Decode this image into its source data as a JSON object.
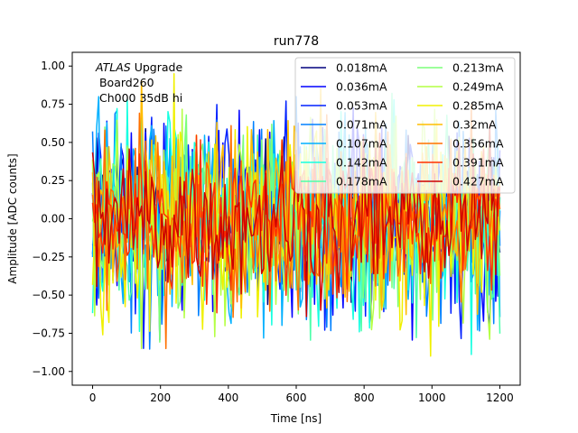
{
  "chart_data": {
    "type": "line",
    "title": "run778",
    "xlabel": "Time [ns]",
    "ylabel": "Amplitude [ADC counts]",
    "xlim": [
      -60,
      1260
    ],
    "ylim": [
      -1.09,
      1.09
    ],
    "xticks": [
      0,
      200,
      400,
      600,
      800,
      1000,
      1200
    ],
    "xtick_labels": [
      "0",
      "200",
      "400",
      "600",
      "800",
      "1000",
      "1200"
    ],
    "yticks": [
      1.0,
      0.75,
      0.5,
      0.25,
      0.0,
      -0.25,
      -0.5,
      -0.75,
      -1.0
    ],
    "ytick_labels": [
      "1.00",
      "0.75",
      "0.50",
      "0.25",
      "0.00",
      "−0.25",
      "−0.50",
      "−0.75",
      "−1.00"
    ],
    "grid": false,
    "legend_location": "top-right",
    "legend_columns": 2,
    "x_start": 0,
    "x_end": 1200,
    "x_step": 6,
    "annotation": {
      "italic": "ATLAS",
      "line1_rest": " Upgrade",
      "line2": " Board260",
      "line3": " Ch000 35dB hi"
    },
    "series": [
      {
        "name": "0.018mA",
        "color": "#00007f",
        "amp": 0.5,
        "max": 0.62,
        "min": -0.62
      },
      {
        "name": "0.036mA",
        "color": "#0000ff",
        "amp": 0.6,
        "max": 0.86,
        "min": -1.0
      },
      {
        "name": "0.053mA",
        "color": "#0020ff",
        "amp": 0.6,
        "max": 0.85,
        "min": -0.92
      },
      {
        "name": "0.071mA",
        "color": "#0080ff",
        "amp": 0.6,
        "max": 0.8,
        "min": -0.9
      },
      {
        "name": "0.107mA",
        "color": "#00b0ff",
        "amp": 0.6,
        "max": 0.8,
        "min": -0.96
      },
      {
        "name": "0.142mA",
        "color": "#17ffe0",
        "amp": 0.6,
        "max": 0.78,
        "min": -0.9
      },
      {
        "name": "0.178mA",
        "color": "#4dffaa",
        "amp": 0.6,
        "max": 0.95,
        "min": -0.9
      },
      {
        "name": "0.213mA",
        "color": "#7cff79",
        "amp": 0.6,
        "max": 0.92,
        "min": -0.97
      },
      {
        "name": "0.249mA",
        "color": "#b4ff43",
        "amp": 0.6,
        "max": 0.95,
        "min": -0.85
      },
      {
        "name": "0.285mA",
        "color": "#f0f000",
        "amp": 0.6,
        "max": 0.95,
        "min": -0.9
      },
      {
        "name": "0.32mA",
        "color": "#ffbd00",
        "amp": 0.6,
        "max": 0.9,
        "min": -0.96
      },
      {
        "name": "0.356mA",
        "color": "#ff7000",
        "amp": 0.55,
        "max": 0.75,
        "min": -0.85
      },
      {
        "name": "0.391mA",
        "color": "#ff3000",
        "amp": 0.45,
        "max": 0.65,
        "min": -0.75
      },
      {
        "name": "0.427mA",
        "color": "#cc0000",
        "amp": 0.45,
        "max": 0.65,
        "min": -0.7
      }
    ]
  }
}
